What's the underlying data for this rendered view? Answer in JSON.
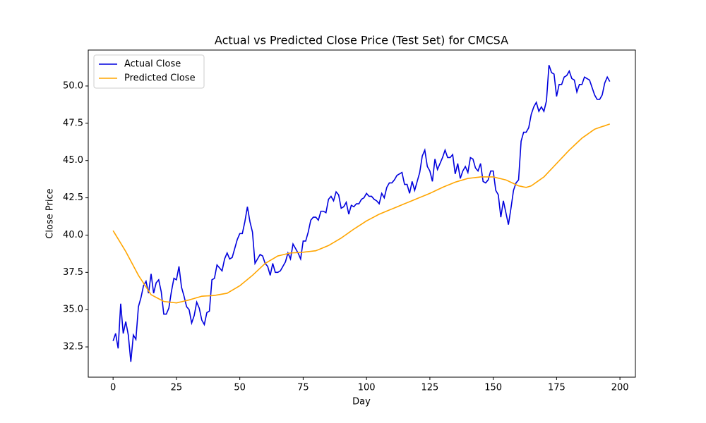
{
  "chart_data": {
    "type": "line",
    "title": "Actual vs Predicted Close Price (Test Set) for CMCSA",
    "x_label": "Day",
    "y_label": "Close Price",
    "x": [
      0,
      1,
      2,
      3,
      4,
      5,
      6,
      7,
      8,
      9,
      10,
      11,
      12,
      13,
      14,
      15,
      16,
      17,
      18,
      19,
      20,
      21,
      22,
      23,
      24,
      25,
      26,
      27,
      28,
      29,
      30,
      31,
      32,
      33,
      34,
      35,
      36,
      37,
      38,
      39,
      40,
      41,
      42,
      43,
      44,
      45,
      46,
      47,
      48,
      49,
      50,
      51,
      52,
      53,
      54,
      55,
      56,
      57,
      58,
      59,
      60,
      61,
      62,
      63,
      64,
      65,
      66,
      67,
      68,
      69,
      70,
      71,
      72,
      73,
      74,
      75,
      76,
      77,
      78,
      79,
      80,
      81,
      82,
      83,
      84,
      85,
      86,
      87,
      88,
      89,
      90,
      91,
      92,
      93,
      94,
      95,
      96,
      97,
      98,
      99,
      100,
      101,
      102,
      103,
      104,
      105,
      106,
      107,
      108,
      109,
      110,
      111,
      112,
      113,
      114,
      115,
      116,
      117,
      118,
      119,
      120,
      121,
      122,
      123,
      124,
      125,
      126,
      127,
      128,
      129,
      130,
      131,
      132,
      133,
      134,
      135,
      136,
      137,
      138,
      139,
      140,
      141,
      142,
      143,
      144,
      145,
      146,
      147,
      148,
      149,
      150,
      151,
      152,
      153,
      154,
      155,
      156,
      157,
      158,
      159,
      160,
      161,
      162,
      163,
      164,
      165,
      166,
      167,
      168,
      169,
      170,
      171,
      172,
      173,
      174,
      175,
      176,
      177,
      178,
      179,
      180,
      181,
      182,
      183,
      184,
      185,
      186,
      187,
      188,
      189,
      190,
      191,
      192,
      193,
      194,
      195,
      196
    ],
    "series": [
      {
        "name": "Actual Close",
        "color": "#0000dd",
        "values": [
          32.9,
          33.4,
          32.4,
          35.4,
          33.4,
          34.2,
          33.3,
          31.5,
          33.3,
          33.0,
          35.2,
          35.8,
          36.6,
          36.9,
          36.1,
          37.4,
          36.1,
          36.8,
          37.0,
          36.2,
          34.7,
          34.7,
          35.1,
          36.2,
          37.1,
          37.0,
          37.9,
          36.5,
          35.9,
          35.2,
          35.0,
          34.1,
          34.6,
          35.5,
          35.1,
          34.3,
          34.0,
          34.8,
          34.9,
          37.0,
          37.1,
          38.0,
          37.8,
          37.6,
          38.4,
          38.8,
          38.4,
          38.5,
          39.1,
          39.7,
          40.1,
          40.1,
          40.9,
          41.9,
          40.9,
          40.2,
          38.1,
          38.4,
          38.7,
          38.6,
          38.1,
          37.9,
          37.3,
          38.1,
          37.5,
          37.5,
          37.6,
          37.9,
          38.2,
          38.8,
          38.4,
          39.4,
          39.1,
          38.8,
          38.4,
          39.6,
          39.6,
          40.2,
          41.0,
          41.2,
          41.2,
          41.0,
          41.6,
          41.6,
          41.5,
          42.4,
          42.6,
          42.3,
          42.9,
          42.7,
          41.8,
          41.9,
          42.2,
          41.4,
          42.0,
          41.9,
          42.1,
          42.1,
          42.4,
          42.5,
          42.8,
          42.6,
          42.6,
          42.4,
          42.3,
          42.1,
          42.8,
          42.5,
          43.2,
          43.5,
          43.5,
          43.7,
          44.0,
          44.1,
          44.2,
          43.4,
          43.4,
          42.8,
          43.6,
          43.0,
          43.6,
          44.2,
          45.3,
          45.7,
          44.6,
          44.3,
          43.6,
          45.1,
          44.4,
          44.8,
          45.2,
          45.7,
          45.2,
          45.2,
          45.4,
          44.1,
          44.8,
          43.8,
          44.3,
          44.6,
          44.2,
          45.2,
          45.1,
          44.5,
          44.3,
          44.8,
          43.6,
          43.5,
          43.7,
          44.3,
          44.3,
          43.0,
          42.7,
          41.2,
          42.3,
          41.5,
          40.7,
          41.8,
          43.0,
          43.5,
          43.7,
          46.3,
          46.9,
          46.9,
          47.2,
          48.1,
          48.6,
          48.9,
          48.3,
          48.6,
          48.3,
          49.0,
          51.4,
          50.9,
          50.8,
          49.3,
          50.1,
          50.1,
          50.6,
          50.7,
          51.0,
          50.5,
          50.4,
          49.6,
          50.1,
          50.1,
          50.6,
          50.5,
          50.4,
          49.9,
          49.4,
          49.1,
          49.1,
          49.4,
          50.2,
          50.6,
          50.3
        ]
      },
      {
        "name": "Predicted Close",
        "color": "#ffa500",
        "values": [
          40.3,
          40.02,
          39.74,
          39.46,
          39.18,
          38.9,
          38.58,
          38.26,
          37.94,
          37.62,
          37.3,
          37.04,
          36.78,
          36.52,
          36.26,
          36.0,
          35.91,
          35.82,
          35.73,
          35.64,
          35.55,
          35.53,
          35.51,
          35.49,
          35.47,
          35.45,
          35.49,
          35.53,
          35.57,
          35.61,
          35.65,
          35.7,
          35.75,
          35.8,
          35.85,
          35.9,
          35.91,
          35.92,
          35.93,
          35.94,
          35.95,
          35.98,
          36.01,
          36.04,
          36.07,
          36.1,
          36.2,
          36.3,
          36.4,
          36.5,
          36.6,
          36.74,
          36.88,
          37.02,
          37.16,
          37.3,
          37.46,
          37.62,
          37.78,
          37.94,
          38.1,
          38.2,
          38.3,
          38.4,
          38.5,
          38.6,
          38.64,
          38.68,
          38.72,
          38.76,
          38.8,
          38.81,
          38.82,
          38.83,
          38.84,
          38.85,
          38.87,
          38.89,
          38.91,
          38.93,
          38.95,
          39.02,
          39.09,
          39.16,
          39.23,
          39.3,
          39.4,
          39.5,
          39.6,
          39.7,
          39.8,
          39.92,
          40.04,
          40.16,
          40.28,
          40.4,
          40.51,
          40.62,
          40.73,
          40.84,
          40.95,
          41.04,
          41.13,
          41.22,
          41.31,
          41.4,
          41.47,
          41.54,
          41.61,
          41.68,
          41.75,
          41.82,
          41.89,
          41.96,
          42.03,
          42.1,
          42.17,
          42.24,
          42.31,
          42.38,
          42.45,
          42.52,
          42.59,
          42.66,
          42.73,
          42.8,
          42.88,
          42.96,
          43.04,
          43.12,
          43.2,
          43.27,
          43.34,
          43.41,
          43.48,
          43.55,
          43.6,
          43.65,
          43.7,
          43.75,
          43.8,
          43.82,
          43.84,
          43.86,
          43.88,
          43.9,
          43.9,
          43.9,
          43.9,
          43.9,
          43.9,
          43.86,
          43.82,
          43.78,
          43.74,
          43.7,
          43.62,
          43.54,
          43.46,
          43.38,
          43.3,
          43.27,
          43.23,
          43.2,
          43.25,
          43.3,
          43.42,
          43.54,
          43.66,
          43.78,
          43.9,
          44.08,
          44.26,
          44.44,
          44.62,
          44.8,
          44.98,
          45.16,
          45.34,
          45.52,
          45.7,
          45.86,
          46.02,
          46.18,
          46.34,
          46.5,
          46.62,
          46.74,
          46.86,
          46.98,
          47.1,
          47.16,
          47.22,
          47.28,
          47.33,
          47.39,
          47.45
        ]
      }
    ],
    "xlim": [
      -9.8,
      206.1
    ],
    "xticks": [
      0,
      25,
      50,
      75,
      100,
      125,
      150,
      175,
      200
    ],
    "ylim": [
      30.47,
      52.41
    ],
    "yticks": [
      32.5,
      {
        "value": 35,
        "label": "35.0"
      },
      37.5,
      {
        "value": 40,
        "label": "40.0"
      },
      42.5,
      {
        "value": 45,
        "label": "45.0"
      },
      47.5,
      {
        "value": 50,
        "label": "50.0"
      }
    ],
    "grid": false,
    "legend": "upper-left"
  }
}
